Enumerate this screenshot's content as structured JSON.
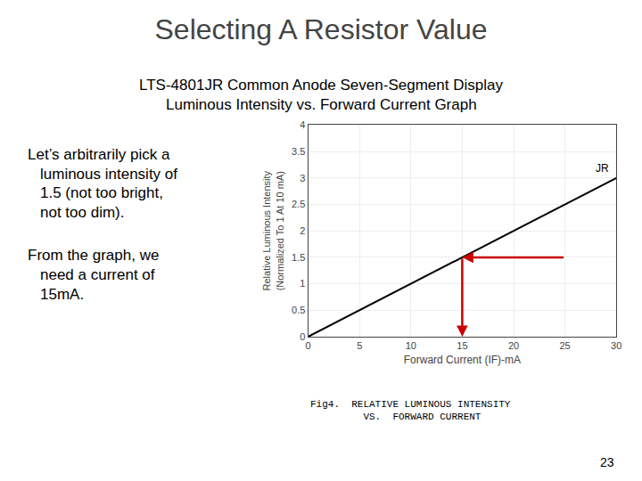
{
  "chart_data": {
    "type": "line",
    "title": "Selecting A Resistor Value",
    "subtitle": [
      "LTS-4801JR Common Anode Seven-Segment Display",
      "Luminous Intensity vs. Forward Current Graph"
    ],
    "annotations": [
      [
        "Let’s arbitrarily pick a",
        "luminous intensity of",
        "1.5 (not too bright,",
        "not too dim)."
      ],
      [
        "From the graph, we",
        "need a current of",
        "15mA."
      ]
    ],
    "x": [
      0,
      30
    ],
    "series": [
      {
        "name": "JR",
        "color": "#000000",
        "values": [
          0,
          3
        ]
      }
    ],
    "arrows": [
      {
        "x_start": 25,
        "y_start": 1.5,
        "x_end": 15,
        "y_end": 1.5,
        "color": "#cc0000"
      },
      {
        "x_start": 15,
        "y_start": 1.5,
        "x_end": 15,
        "y_end": 0,
        "color": "#cc0000"
      }
    ],
    "xlabel": "Forward Current (IF)-mA",
    "ylabel": "Relative Luminous Intensity\n(Normalized To 1 At 10 mA)",
    "xlim": [
      0,
      30
    ],
    "ylim": [
      0,
      4
    ],
    "xticks": [
      0,
      5,
      10,
      15,
      20,
      25,
      30
    ],
    "yticks": [
      0,
      0.5,
      1,
      1.5,
      2,
      2.5,
      3,
      3.5,
      4
    ],
    "grid": true,
    "caption": "Fig4.  RELATIVE LUMINOUS INTENSITY\n         VS.  FORWARD CURRENT",
    "page_number": "23"
  }
}
